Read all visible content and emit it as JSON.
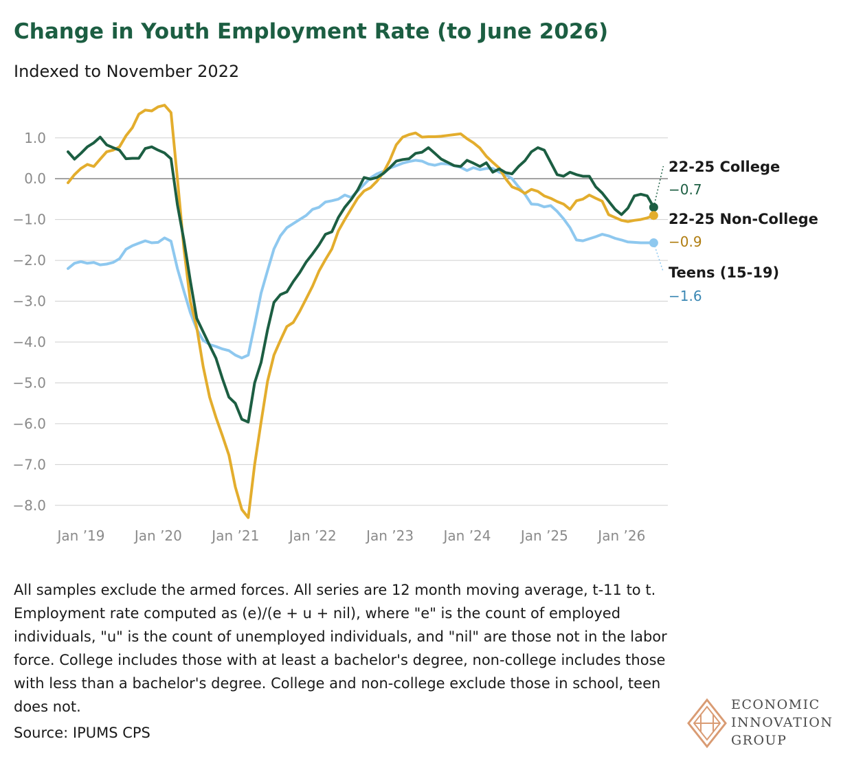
{
  "title": "Change in Youth Employment Rate (to June 2026)",
  "subtitle": "Indexed to November 2022",
  "note": "All samples exclude the armed forces. All series are 12 month moving average, t-11 to t. Employment rate computed as (e)/(e + u + nil), where \"e\" is the count of employed individuals, \"u\" is the count of unemployed individuals, and \"nil\" are those not in the labor force. College includes those with at least a bachelor's degree, non-college includes those with less than a bachelor's degree. College and non-college exclude those in school, teen does not.",
  "source": "Source: IPUMS CPS",
  "logo": {
    "line1": "ECONOMIC",
    "line2": "INNOVATION",
    "line3": "GROUP"
  },
  "colors": {
    "college": "#1c5e42",
    "non_college": "#e3ad2d",
    "teens": "#8ec8ef",
    "college_value": "#1c5e42",
    "non_college_value": "#b07d10",
    "teens_value": "#3a87b3",
    "title": "#1c5e42",
    "grid": "#cfcfcf",
    "axis_text": "#8a8a8a"
  },
  "chart_data": {
    "type": "line",
    "x_tick_labels": [
      "Jan ’19",
      "Jan ’20",
      "Jan ’21",
      "Jan ’22",
      "Jan ’23",
      "Jan ’24",
      "Jan ’25",
      "Jan ’26"
    ],
    "x_tick_positions": [
      0,
      12,
      24,
      36,
      48,
      60,
      72,
      84
    ],
    "x_start": "Jan 2019",
    "x_end": "Jun 2026",
    "y_ticks": [
      1.0,
      0.0,
      -1.0,
      -2.0,
      -3.0,
      -4.0,
      -5.0,
      -6.0,
      -7.0,
      -8.0
    ],
    "y_tick_labels": [
      "1.0",
      "0.0",
      "−1.0",
      "−2.0",
      "−3.0",
      "−4.0",
      "−5.0",
      "−6.0",
      "−7.0",
      "−8.0"
    ],
    "ylim": [
      -8.3,
      1.9
    ],
    "grid": true,
    "series": [
      {
        "key": "college",
        "name": "22-25 College",
        "end_label": "−0.7",
        "values": [
          0.66,
          0.48,
          0.62,
          0.78,
          0.88,
          1.02,
          0.83,
          0.76,
          0.7,
          0.49,
          0.5,
          0.5,
          0.74,
          0.78,
          0.7,
          0.63,
          0.49,
          -0.64,
          -1.5,
          -2.5,
          -3.42,
          -3.75,
          -4.08,
          -4.4,
          -4.9,
          -5.35,
          -5.5,
          -5.89,
          -5.96,
          -5.0,
          -4.5,
          -3.7,
          -3.03,
          -2.84,
          -2.77,
          -2.52,
          -2.3,
          -2.04,
          -1.84,
          -1.62,
          -1.36,
          -1.3,
          -0.95,
          -0.7,
          -0.51,
          -0.28,
          0.03,
          -0.01,
          0.03,
          0.13,
          0.27,
          0.43,
          0.47,
          0.49,
          0.62,
          0.65,
          0.76,
          0.62,
          0.48,
          0.4,
          0.32,
          0.3,
          0.45,
          0.38,
          0.3,
          0.39,
          0.16,
          0.24,
          0.15,
          0.12,
          0.3,
          0.44,
          0.66,
          0.76,
          0.7,
          0.4,
          0.1,
          0.06,
          0.16,
          0.1,
          0.06,
          0.06,
          -0.2,
          -0.35,
          -0.55,
          -0.75,
          -0.88,
          -0.72,
          -0.42,
          -0.38,
          -0.42,
          -0.7
        ]
      },
      {
        "key": "non_college",
        "name": "22-25 Non-College",
        "end_label": "−0.9",
        "values": [
          -0.1,
          0.1,
          0.25,
          0.35,
          0.3,
          0.48,
          0.66,
          0.7,
          0.78,
          1.05,
          1.25,
          1.58,
          1.68,
          1.66,
          1.76,
          1.8,
          1.62,
          0.0,
          -1.7,
          -3.0,
          -3.64,
          -4.6,
          -5.35,
          -5.85,
          -6.3,
          -6.77,
          -7.55,
          -8.1,
          -8.3,
          -7.0,
          -5.96,
          -4.96,
          -4.32,
          -3.96,
          -3.62,
          -3.52,
          -3.25,
          -2.94,
          -2.63,
          -2.26,
          -1.98,
          -1.72,
          -1.28,
          -1.0,
          -0.74,
          -0.48,
          -0.3,
          -0.22,
          -0.06,
          0.15,
          0.45,
          0.83,
          1.02,
          1.08,
          1.12,
          1.02,
          1.03,
          1.03,
          1.04,
          1.06,
          1.08,
          1.1,
          0.98,
          0.88,
          0.75,
          0.55,
          0.4,
          0.26,
          0.0,
          -0.2,
          -0.26,
          -0.36,
          -0.26,
          -0.31,
          -0.42,
          -0.48,
          -0.56,
          -0.62,
          -0.75,
          -0.54,
          -0.5,
          -0.4,
          -0.48,
          -0.55,
          -0.88,
          -0.95,
          -1.02,
          -1.05,
          -1.02,
          -1.0,
          -0.96,
          -0.9
        ]
      },
      {
        "key": "teens",
        "name": "Teens (15-19)",
        "end_label": "−1.6",
        "values": [
          -2.2,
          -2.07,
          -2.03,
          -2.07,
          -2.05,
          -2.11,
          -2.09,
          -2.05,
          -1.96,
          -1.73,
          -1.64,
          -1.58,
          -1.52,
          -1.57,
          -1.56,
          -1.45,
          -1.53,
          -2.2,
          -2.75,
          -3.28,
          -3.68,
          -3.96,
          -4.06,
          -4.11,
          -4.17,
          -4.21,
          -4.32,
          -4.39,
          -4.32,
          -3.58,
          -2.8,
          -2.25,
          -1.72,
          -1.4,
          -1.2,
          -1.1,
          -1.0,
          -0.9,
          -0.75,
          -0.7,
          -0.57,
          -0.54,
          -0.5,
          -0.4,
          -0.46,
          -0.3,
          -0.14,
          0.02,
          0.12,
          0.18,
          0.26,
          0.32,
          0.38,
          0.42,
          0.45,
          0.43,
          0.36,
          0.33,
          0.37,
          0.36,
          0.32,
          0.28,
          0.2,
          0.27,
          0.22,
          0.25,
          0.25,
          0.16,
          0.1,
          0.0,
          -0.2,
          -0.38,
          -0.62,
          -0.63,
          -0.69,
          -0.66,
          -0.8,
          -0.98,
          -1.2,
          -1.5,
          -1.52,
          -1.47,
          -1.42,
          -1.36,
          -1.4,
          -1.46,
          -1.5,
          -1.55,
          -1.56,
          -1.57,
          -1.57,
          -1.57
        ]
      }
    ]
  }
}
